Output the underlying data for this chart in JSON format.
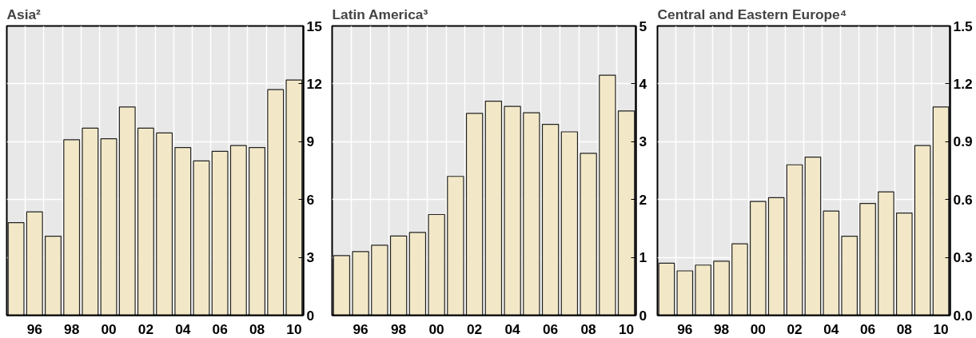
{
  "chart_data": [
    {
      "type": "bar",
      "title": "Asia²",
      "x": [
        1995,
        1996,
        1997,
        1998,
        1999,
        2000,
        2001,
        2002,
        2003,
        2004,
        2005,
        2006,
        2007,
        2008,
        2009,
        2010
      ],
      "values": [
        4.8,
        5.36,
        4.1,
        9.1,
        9.7,
        9.15,
        10.8,
        9.7,
        9.45,
        8.7,
        8.0,
        8.5,
        8.8,
        8.7,
        11.7,
        12.2
      ],
      "color": "#f2e8c8",
      "xlim": [
        1994.5,
        2010.5
      ],
      "xticks": [
        {
          "value": 1996,
          "label": "96"
        },
        {
          "value": 1998,
          "label": "98"
        },
        {
          "value": 2000,
          "label": "00"
        },
        {
          "value": 2002,
          "label": "02"
        },
        {
          "value": 2004,
          "label": "04"
        },
        {
          "value": 2006,
          "label": "06"
        },
        {
          "value": 2008,
          "label": "08"
        },
        {
          "value": 2010,
          "label": "10"
        }
      ],
      "ylim": [
        0,
        15
      ],
      "yticks": [
        0,
        3,
        6,
        9,
        12,
        15
      ],
      "grid": true
    },
    {
      "type": "bar",
      "title": "Latin America³",
      "x": [
        1995,
        1996,
        1997,
        1998,
        1999,
        2000,
        2001,
        2002,
        2003,
        2004,
        2005,
        2006,
        2007,
        2008,
        2009,
        2010
      ],
      "values": [
        1.03,
        1.1,
        1.21,
        1.37,
        1.43,
        1.74,
        2.4,
        3.49,
        3.7,
        3.61,
        3.5,
        3.3,
        3.17,
        2.8,
        4.15,
        3.53
      ],
      "color": "#f2e8c8",
      "xlim": [
        1994.5,
        2010.5
      ],
      "xticks": [
        {
          "value": 1996,
          "label": "96"
        },
        {
          "value": 1998,
          "label": "98"
        },
        {
          "value": 2000,
          "label": "00"
        },
        {
          "value": 2002,
          "label": "02"
        },
        {
          "value": 2004,
          "label": "04"
        },
        {
          "value": 2006,
          "label": "06"
        },
        {
          "value": 2008,
          "label": "08"
        },
        {
          "value": 2010,
          "label": "10"
        }
      ],
      "ylim": [
        0,
        5
      ],
      "yticks": [
        0,
        1,
        2,
        3,
        4,
        5
      ],
      "grid": true
    },
    {
      "type": "bar",
      "title": "Central and Eastern Europe⁴",
      "x": [
        1995,
        1996,
        1997,
        1998,
        1999,
        2000,
        2001,
        2002,
        2003,
        2004,
        2005,
        2006,
        2007,
        2008,
        2009,
        2010
      ],
      "values": [
        0.27,
        0.23,
        0.26,
        0.28,
        0.37,
        0.59,
        0.61,
        0.78,
        0.82,
        0.54,
        0.41,
        0.58,
        0.64,
        0.53,
        0.88,
        1.08
      ],
      "color": "#f2e8c8",
      "xlim": [
        1994.5,
        2010.5
      ],
      "xticks": [
        {
          "value": 1996,
          "label": "96"
        },
        {
          "value": 1998,
          "label": "98"
        },
        {
          "value": 2000,
          "label": "00"
        },
        {
          "value": 2002,
          "label": "02"
        },
        {
          "value": 2004,
          "label": "04"
        },
        {
          "value": 2006,
          "label": "06"
        },
        {
          "value": 2008,
          "label": "08"
        },
        {
          "value": 2010,
          "label": "10"
        }
      ],
      "ylim": [
        0,
        1.5
      ],
      "yticks": [
        {
          "value": 0,
          "label": "0.0"
        },
        {
          "value": 0.3,
          "label": "0.3"
        },
        {
          "value": 0.6,
          "label": "0.6"
        },
        {
          "value": 0.9,
          "label": "0.9"
        },
        {
          "value": 1.2,
          "label": "1.2"
        },
        {
          "value": 1.5,
          "label": "1.5"
        }
      ],
      "grid": true
    }
  ]
}
